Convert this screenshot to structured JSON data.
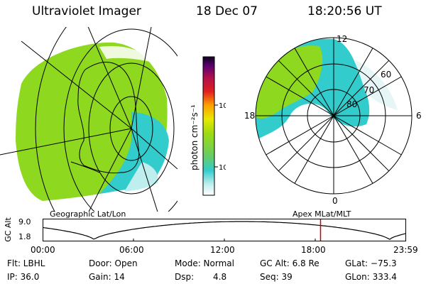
{
  "header": {
    "instrument": "Ultraviolet Imager",
    "date": "18 Dec 07",
    "time": "18:20:56 UT"
  },
  "colorbar": {
    "unit_label": "photon cm⁻²s⁻¹",
    "ticks": [
      {
        "value": 100,
        "label": "100"
      },
      {
        "value": 10,
        "label": "10"
      }
    ],
    "scale": "log"
  },
  "polar_plot": {
    "labels": [
      {
        "text": "12",
        "pos": "top"
      },
      {
        "text": "0",
        "pos": "bottom"
      },
      {
        "text": "18",
        "pos": "left"
      },
      {
        "text": "6",
        "pos": "right"
      },
      {
        "text": "80",
        "pos": "inner"
      },
      {
        "text": "70",
        "pos": "mid"
      },
      {
        "text": "60",
        "pos": "outer"
      }
    ]
  },
  "projections": {
    "left": "Geographic Lat/Lon",
    "right": "Apex MLat/MLT"
  },
  "altitude_plot": {
    "ylabel": "GC Alt",
    "yticks": [
      "9.0",
      "1.8"
    ],
    "xticks": [
      "00:00",
      "06:00",
      "12:00",
      "18:00",
      "23:59"
    ],
    "current_time_marker_hour": 18.35
  },
  "info": {
    "filter": "Flt: LBHL",
    "door": "Door: Open",
    "mode": "Mode: Normal",
    "gc_alt": "GC Alt: 6.8 Re",
    "glat": "GLat: −75.3",
    "ip": "IP: 36.0",
    "gain": "Gain: 14",
    "dsp_label": "Dsp:",
    "dsp_value": "4.8",
    "seq": "Seq: 39",
    "glon": "GLon: 333.4"
  },
  "colors": {
    "aurora_green": "#8ed820",
    "aurora_cyan": "#33cccc",
    "line": "#000000",
    "marker": "#cc0000"
  }
}
